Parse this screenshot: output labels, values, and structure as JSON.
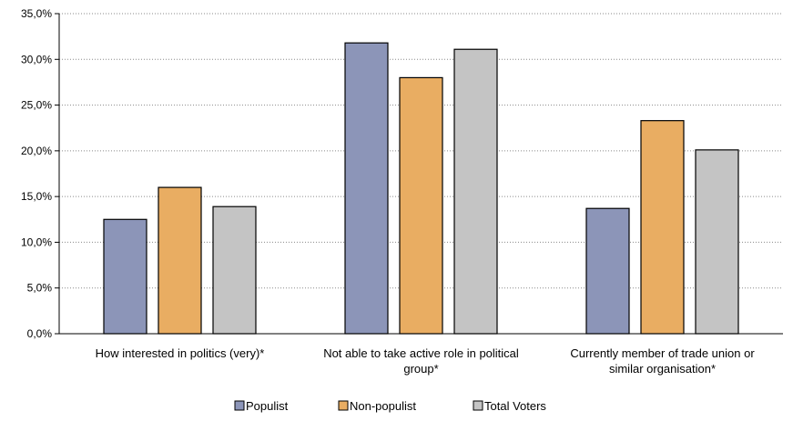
{
  "chart_data": {
    "type": "bar",
    "title": "",
    "xlabel": "",
    "ylabel": "",
    "ylim": [
      0,
      35
    ],
    "yticks": [
      "0,0%",
      "5,0%",
      "10,0%",
      "15,0%",
      "20,0%",
      "25,0%",
      "30,0%",
      "35,0%"
    ],
    "grid": "horizontal-dotted",
    "legend_position": "bottom",
    "categories": [
      [
        "How interested in politics (very)*"
      ],
      [
        "Not able to take active role in political",
        "group*"
      ],
      [
        "Currently member of trade union or",
        "similar organisation*"
      ]
    ],
    "series": [
      {
        "name": "Populist",
        "color": "#8c95b8",
        "values": [
          12.5,
          31.8,
          13.7
        ]
      },
      {
        "name": "Non-populist",
        "color": "#e9ad62",
        "values": [
          16.0,
          28.0,
          23.3
        ]
      },
      {
        "name": "Total Voters",
        "color": "#c4c4c4",
        "values": [
          13.9,
          31.1,
          20.1
        ]
      }
    ]
  }
}
